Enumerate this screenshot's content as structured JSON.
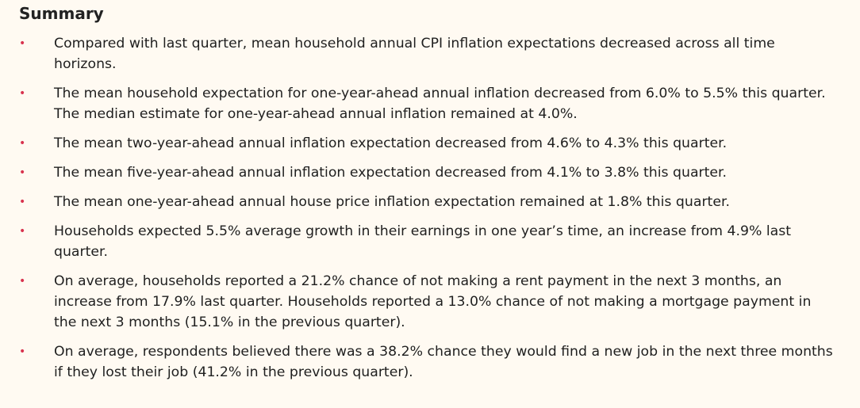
{
  "heading": "Summary",
  "bullet_color": "#d8324e",
  "bullet_glyph": "•",
  "items": [
    "Compared with last quarter, mean household annual CPI inflation expectations decreased across all time horizons.",
    "The mean household expectation for one-year-ahead annual inflation decreased from 6.0% to 5.5% this quarter. The median estimate for one-year-ahead annual inflation remained at 4.0%.",
    "The mean two-year-ahead annual inflation expectation decreased from 4.6% to 4.3% this quarter.",
    "The mean five-year-ahead annual inflation expectation decreased from 4.1% to 3.8% this quarter.",
    "The mean one-year-ahead annual house price inflation expectation remained at 1.8% this quarter.",
    "Households expected 5.5% average growth in their earnings in one year’s time, an increase from 4.9% last quarter.",
    "On average, households reported a 21.2% chance of not making a rent payment in the next 3 months, an increase from 17.9% last quarter. Households reported a 13.0% chance of not making a mortgage payment in the next 3 months (15.1% in the previous quarter).",
    "On average, respondents believed there was a 38.2% chance they would find a new job in the next three months if they lost their job (41.2% in the previous quarter)."
  ]
}
